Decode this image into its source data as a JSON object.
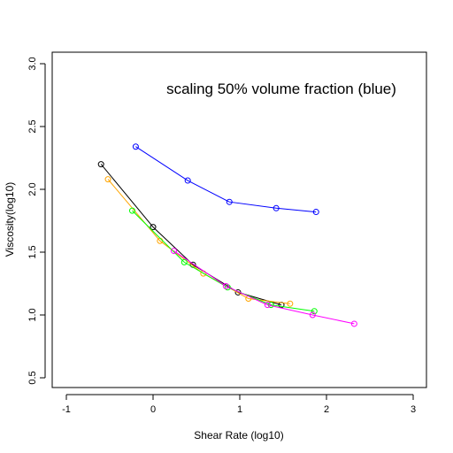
{
  "chart_data": {
    "type": "line",
    "title": "scaling 50% volume fraction (blue)",
    "xlabel": "Shear Rate (log10)",
    "ylabel": "Viscosity(log10)",
    "xlim": [
      -1.0,
      3.0
    ],
    "ylim": [
      0.5,
      3.0
    ],
    "xticks": [
      "-1",
      "0",
      "1",
      "2",
      "3"
    ],
    "yticks": [
      "0.5",
      "1.0",
      "1.5",
      "2.0",
      "2.5",
      "3.0"
    ],
    "grid": false,
    "legend": "none",
    "series": [
      {
        "color": "#0000ff",
        "x": [
          -0.2,
          0.4,
          0.88,
          1.42,
          1.88
        ],
        "y": [
          2.34,
          2.07,
          1.9,
          1.85,
          1.82
        ]
      },
      {
        "color": "#000000",
        "x": [
          -0.6,
          0.0,
          0.46,
          0.98,
          1.48
        ],
        "y": [
          2.2,
          1.7,
          1.4,
          1.18,
          1.08
        ]
      },
      {
        "color": "#ffa500",
        "x": [
          -0.52,
          0.08,
          0.58,
          1.1,
          1.58
        ],
        "y": [
          2.08,
          1.59,
          1.33,
          1.13,
          1.09
        ]
      },
      {
        "color": "#00ff00",
        "x": [
          -0.24,
          0.36,
          0.86,
          1.36,
          1.86
        ],
        "y": [
          1.83,
          1.42,
          1.22,
          1.08,
          1.03
        ]
      },
      {
        "color": "#ff00ff",
        "x": [
          0.24,
          0.84,
          1.32,
          1.84,
          2.32
        ],
        "y": [
          1.51,
          1.23,
          1.08,
          1.0,
          0.93
        ]
      }
    ]
  }
}
